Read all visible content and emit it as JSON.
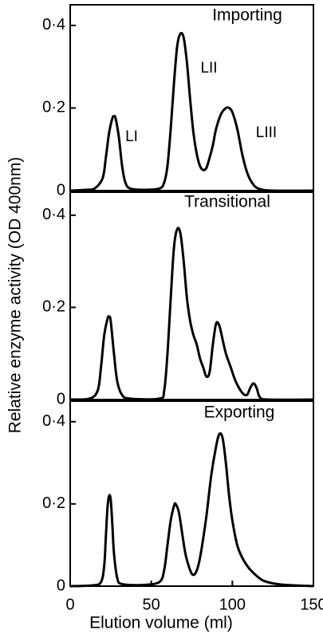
{
  "chart_data": [
    {
      "type": "line",
      "title": "Importing",
      "labels": [
        "LI",
        "LII",
        "LIII"
      ],
      "x": [
        0,
        10,
        15,
        20,
        22,
        24,
        26,
        27,
        28,
        30,
        32,
        34,
        37,
        45,
        55,
        58,
        60,
        62,
        64,
        66,
        68,
        70,
        72,
        74,
        76,
        78,
        80,
        82,
        84,
        86,
        88,
        90,
        93,
        96,
        98,
        100,
        103,
        106,
        109,
        112,
        116,
        125,
        150
      ],
      "series": [
        {
          "name": "Importing",
          "color": "#000000",
          "values": [
            0,
            0.002,
            0.005,
            0.03,
            0.08,
            0.14,
            0.175,
            0.18,
            0.175,
            0.13,
            0.06,
            0.02,
            0.005,
            0.002,
            0.005,
            0.02,
            0.06,
            0.15,
            0.26,
            0.35,
            0.38,
            0.37,
            0.31,
            0.22,
            0.14,
            0.09,
            0.06,
            0.05,
            0.055,
            0.08,
            0.11,
            0.15,
            0.185,
            0.2,
            0.2,
            0.19,
            0.15,
            0.09,
            0.045,
            0.02,
            0.005,
            0,
            0
          ]
        }
      ],
      "xlim": [
        0,
        150
      ],
      "ylim": [
        0,
        0.45
      ],
      "yticks": [
        {
          "value": 0,
          "label": "0"
        },
        {
          "value": 0.2,
          "label": "0·2"
        },
        {
          "value": 0.4,
          "label": "0·4"
        }
      ]
    },
    {
      "type": "line",
      "title": "Transitional",
      "ylabel": "Relative enzyme activity (OD 400nm)",
      "x": [
        0,
        12,
        17,
        19,
        21,
        23,
        24,
        25,
        27,
        29,
        32,
        37,
        55,
        58,
        60,
        62,
        64,
        66,
        68,
        70,
        72,
        74,
        76,
        78,
        80,
        82,
        84,
        86,
        88,
        90,
        92,
        94,
        96,
        99,
        102,
        106,
        109,
        111,
        113,
        115,
        117,
        122,
        150
      ],
      "series": [
        {
          "name": "Transitional",
          "color": "#000000",
          "values": [
            0,
            0.002,
            0.02,
            0.07,
            0.14,
            0.175,
            0.18,
            0.17,
            0.1,
            0.04,
            0.01,
            0.002,
            0.002,
            0.02,
            0.1,
            0.22,
            0.33,
            0.37,
            0.36,
            0.3,
            0.22,
            0.17,
            0.14,
            0.12,
            0.09,
            0.07,
            0.05,
            0.06,
            0.12,
            0.165,
            0.16,
            0.13,
            0.1,
            0.07,
            0.04,
            0.015,
            0.01,
            0.025,
            0.035,
            0.025,
            0.005,
            0,
            0
          ]
        }
      ],
      "xlim": [
        0,
        150
      ],
      "ylim": [
        0,
        0.45
      ],
      "yticks": [
        {
          "value": 0,
          "label": "0"
        },
        {
          "value": 0.2,
          "label": "0·2"
        },
        {
          "value": 0.4,
          "label": "0·4"
        }
      ]
    },
    {
      "type": "line",
      "title": "Exporting",
      "xlabel": "Elution volume (ml)",
      "x": [
        0,
        14,
        19,
        21,
        22,
        23,
        24,
        25,
        26,
        27,
        29,
        32,
        45,
        55,
        58,
        60,
        62,
        64,
        65,
        67,
        69,
        71,
        73,
        75,
        77,
        79,
        81,
        84,
        87,
        90,
        92,
        94,
        96,
        98,
        100,
        103,
        106,
        110,
        115,
        120,
        130,
        150
      ],
      "series": [
        {
          "name": "Exporting",
          "color": "#000000",
          "values": [
            0,
            0.002,
            0.01,
            0.05,
            0.12,
            0.19,
            0.22,
            0.21,
            0.15,
            0.08,
            0.02,
            0.005,
            0.003,
            0.01,
            0.04,
            0.1,
            0.16,
            0.195,
            0.2,
            0.18,
            0.13,
            0.08,
            0.05,
            0.03,
            0.03,
            0.05,
            0.09,
            0.17,
            0.27,
            0.34,
            0.37,
            0.36,
            0.3,
            0.22,
            0.16,
            0.1,
            0.07,
            0.045,
            0.025,
            0.012,
            0.004,
            0
          ]
        }
      ],
      "xlim": [
        0,
        150
      ],
      "ylim": [
        0,
        0.45
      ],
      "xticks": [
        0,
        50,
        100,
        150
      ],
      "yticks": [
        {
          "value": 0,
          "label": "0"
        },
        {
          "value": 0.2,
          "label": "0·2"
        },
        {
          "value": 0.4,
          "label": "0·4"
        }
      ]
    }
  ]
}
